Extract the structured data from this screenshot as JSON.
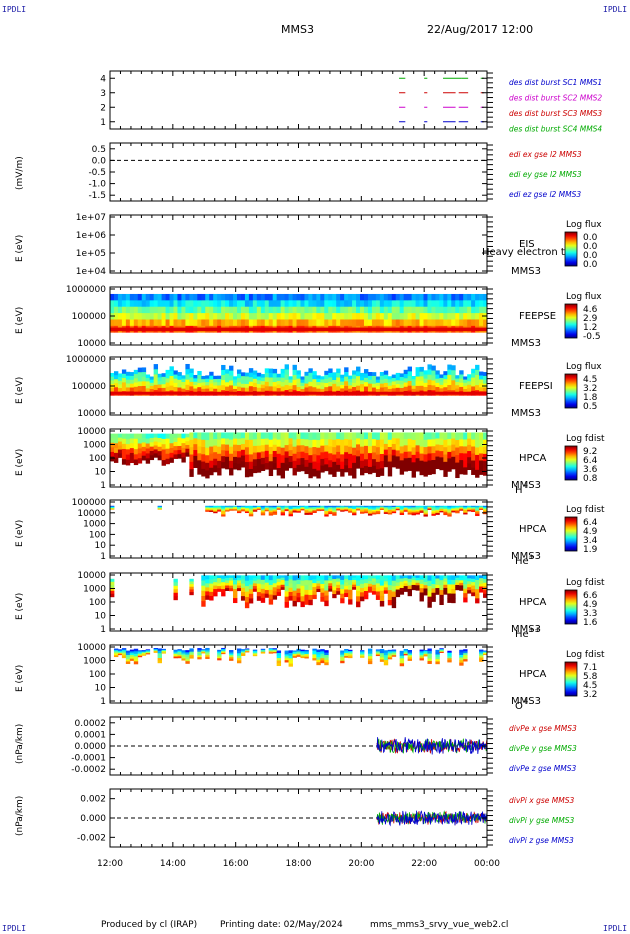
{
  "corner_label": "IPDLI",
  "header": {
    "title": "MMS3",
    "date": "22/Aug/2017 12:00"
  },
  "footer": {
    "produced_by": "Produced by cl (IRAP)",
    "printing_date": "Printing date: 02/May/2024",
    "script": "mms_mms3_srvy_vue_web2.cl"
  },
  "time_axis": {
    "start": "12:00",
    "end": "00:00",
    "ticks": [
      "12:00",
      "14:00",
      "16:00",
      "18:00",
      "20:00",
      "22:00",
      "00:00"
    ]
  },
  "chart_data": [
    {
      "id": "p1",
      "type": "line",
      "title": "",
      "ylabel": "",
      "yticks": [
        "4",
        "3",
        "2",
        "1"
      ],
      "ylim": [
        0.5,
        4.5
      ],
      "legend": [
        {
          "text": "des dist burst SC1 MMS1",
          "color": "#0000cc"
        },
        {
          "text": "des dist burst SC2 MMS2",
          "color": "#cc00cc"
        },
        {
          "text": "des dist burst SC3 MMS3",
          "color": "#cc0000"
        },
        {
          "text": "des dist burst SC4 MMS4",
          "color": "#00aa00"
        }
      ],
      "series": [
        {
          "name": "des dist burst SC4 MMS4",
          "y": 4,
          "color": "#00aa00",
          "segments": [
            [
              21.2,
              21.4
            ],
            [
              22.0,
              22.1
            ],
            [
              22.6,
              23.2
            ],
            [
              23.2,
              23.4
            ],
            [
              23.8,
              23.9
            ]
          ]
        },
        {
          "name": "des dist burst SC3 MMS3",
          "y": 3,
          "color": "#cc0000",
          "segments": [
            [
              21.2,
              21.4
            ],
            [
              22.0,
              22.1
            ],
            [
              22.6,
              23.0
            ],
            [
              23.1,
              23.4
            ],
            [
              23.8,
              23.9
            ]
          ]
        },
        {
          "name": "des dist burst SC2 MMS2",
          "y": 2,
          "color": "#cc00cc",
          "segments": [
            [
              21.2,
              21.4
            ],
            [
              22.0,
              22.1
            ],
            [
              22.6,
              23.0
            ],
            [
              23.1,
              23.4
            ],
            [
              23.8,
              23.9
            ]
          ]
        },
        {
          "name": "des dist burst SC1 MMS1",
          "y": 1,
          "color": "#0000cc",
          "segments": [
            [
              21.2,
              21.4
            ],
            [
              22.0,
              22.1
            ],
            [
              22.6,
              23.0
            ],
            [
              23.1,
              23.4
            ],
            [
              23.8,
              23.9
            ]
          ]
        }
      ]
    },
    {
      "id": "p2",
      "type": "line",
      "ylabel": "(mV/m)",
      "yticks": [
        "0.5",
        "0.0",
        "-0.5",
        "-1.0",
        "-1.5"
      ],
      "ylim": [
        -1.75,
        0.75
      ],
      "legend": [
        {
          "text": "edi ex gse l2 MMS3",
          "color": "#cc0000"
        },
        {
          "text": "edi ey gse l2 MMS3",
          "color": "#00aa00"
        },
        {
          "text": "edi ez gse l2 MMS3",
          "color": "#0000cc"
        }
      ],
      "dashed_zero": true
    },
    {
      "id": "p3",
      "type": "heatmap",
      "ylabel": "E (eV)",
      "yticks": [
        "1e+07",
        "1e+06",
        "1e+05",
        "1e+04"
      ],
      "instrument": "EIS",
      "sc": "MMS3",
      "overlay_text": "Heavy electron to",
      "colorbar": {
        "title": "Log flux",
        "ticks": [
          "0.0",
          "0.0",
          "0.0",
          "0.0"
        ]
      }
    },
    {
      "id": "p4",
      "type": "heatmap",
      "ylabel": "E (eV)",
      "yticks": [
        "1000000",
        "100000",
        "10000"
      ],
      "instrument": "FEEPSE",
      "sc": "MMS3",
      "colorbar": {
        "title": "Log flux",
        "ticks": [
          "4.6",
          "2.9",
          "1.2",
          "-0.5"
        ]
      }
    },
    {
      "id": "p5",
      "type": "heatmap",
      "ylabel": "E (eV)",
      "yticks": [
        "1000000",
        "100000",
        "10000"
      ],
      "instrument": "FEEPSI",
      "sc": "MMS3",
      "colorbar": {
        "title": "Log flux",
        "ticks": [
          "4.5",
          "3.2",
          "1.8",
          "0.5"
        ]
      }
    },
    {
      "id": "p6",
      "type": "heatmap",
      "ylabel": "E (eV)",
      "yticks": [
        "10000",
        "1000",
        "100",
        "10",
        "1"
      ],
      "instrument": "HPCA",
      "sc": "MMS3",
      "species": "H",
      "charge": "+",
      "colorbar": {
        "title": "Log fdist",
        "ticks": [
          "9.2",
          "6.4",
          "3.6",
          "0.8"
        ]
      }
    },
    {
      "id": "p7",
      "type": "heatmap",
      "ylabel": "E (eV)",
      "yticks": [
        "100000",
        "10000",
        "1000",
        "100",
        "10",
        "1"
      ],
      "instrument": "HPCA",
      "sc": "MMS3",
      "species": "He",
      "charge": "+",
      "colorbar": {
        "title": "Log fdist",
        "ticks": [
          "6.4",
          "4.9",
          "3.4",
          "1.9"
        ]
      }
    },
    {
      "id": "p8",
      "type": "heatmap",
      "ylabel": "E (eV)",
      "yticks": [
        "10000",
        "1000",
        "100",
        "10",
        "1"
      ],
      "instrument": "HPCA",
      "sc": "MMS3",
      "species": "He",
      "charge": "++",
      "colorbar": {
        "title": "Log fdist",
        "ticks": [
          "6.6",
          "4.9",
          "3.3",
          "1.6"
        ]
      }
    },
    {
      "id": "p9",
      "type": "heatmap",
      "ylabel": "E (eV)",
      "yticks": [
        "10000",
        "1000",
        "100",
        "10",
        "1"
      ],
      "instrument": "HPCA",
      "sc": "MMS3",
      "species": "O",
      "charge": "+",
      "colorbar": {
        "title": "Log fdist",
        "ticks": [
          "7.1",
          "5.8",
          "4.5",
          "3.2"
        ]
      }
    },
    {
      "id": "p10",
      "type": "line",
      "ylabel": "(nPa/km)",
      "yticks": [
        "0.0002",
        "0.0001",
        "0.0000",
        "-0.0001",
        "-0.0002"
      ],
      "ylim": [
        -0.00025,
        0.00025
      ],
      "legend": [
        {
          "text": "divPe x gse MMS3",
          "color": "#cc0000"
        },
        {
          "text": "divPe y gse MMS3",
          "color": "#00aa00"
        },
        {
          "text": "divPe z gse MMS3",
          "color": "#0000cc"
        }
      ],
      "dashed_zero": true,
      "data_start": 20.5,
      "amplitude": 8e-05
    },
    {
      "id": "p11",
      "type": "line",
      "ylabel": "(nPa/km)",
      "yticks": [
        "0.002",
        "0.000",
        "-0.002"
      ],
      "ylim": [
        -0.003,
        0.003
      ],
      "legend": [
        {
          "text": "divPi x gse MMS3",
          "color": "#cc0000"
        },
        {
          "text": "divPi y gse MMS3",
          "color": "#00aa00"
        },
        {
          "text": "divPi z gse MMS3",
          "color": "#0000cc"
        }
      ],
      "dashed_zero": true,
      "data_start": 20.5,
      "amplitude": 0.0009
    }
  ]
}
